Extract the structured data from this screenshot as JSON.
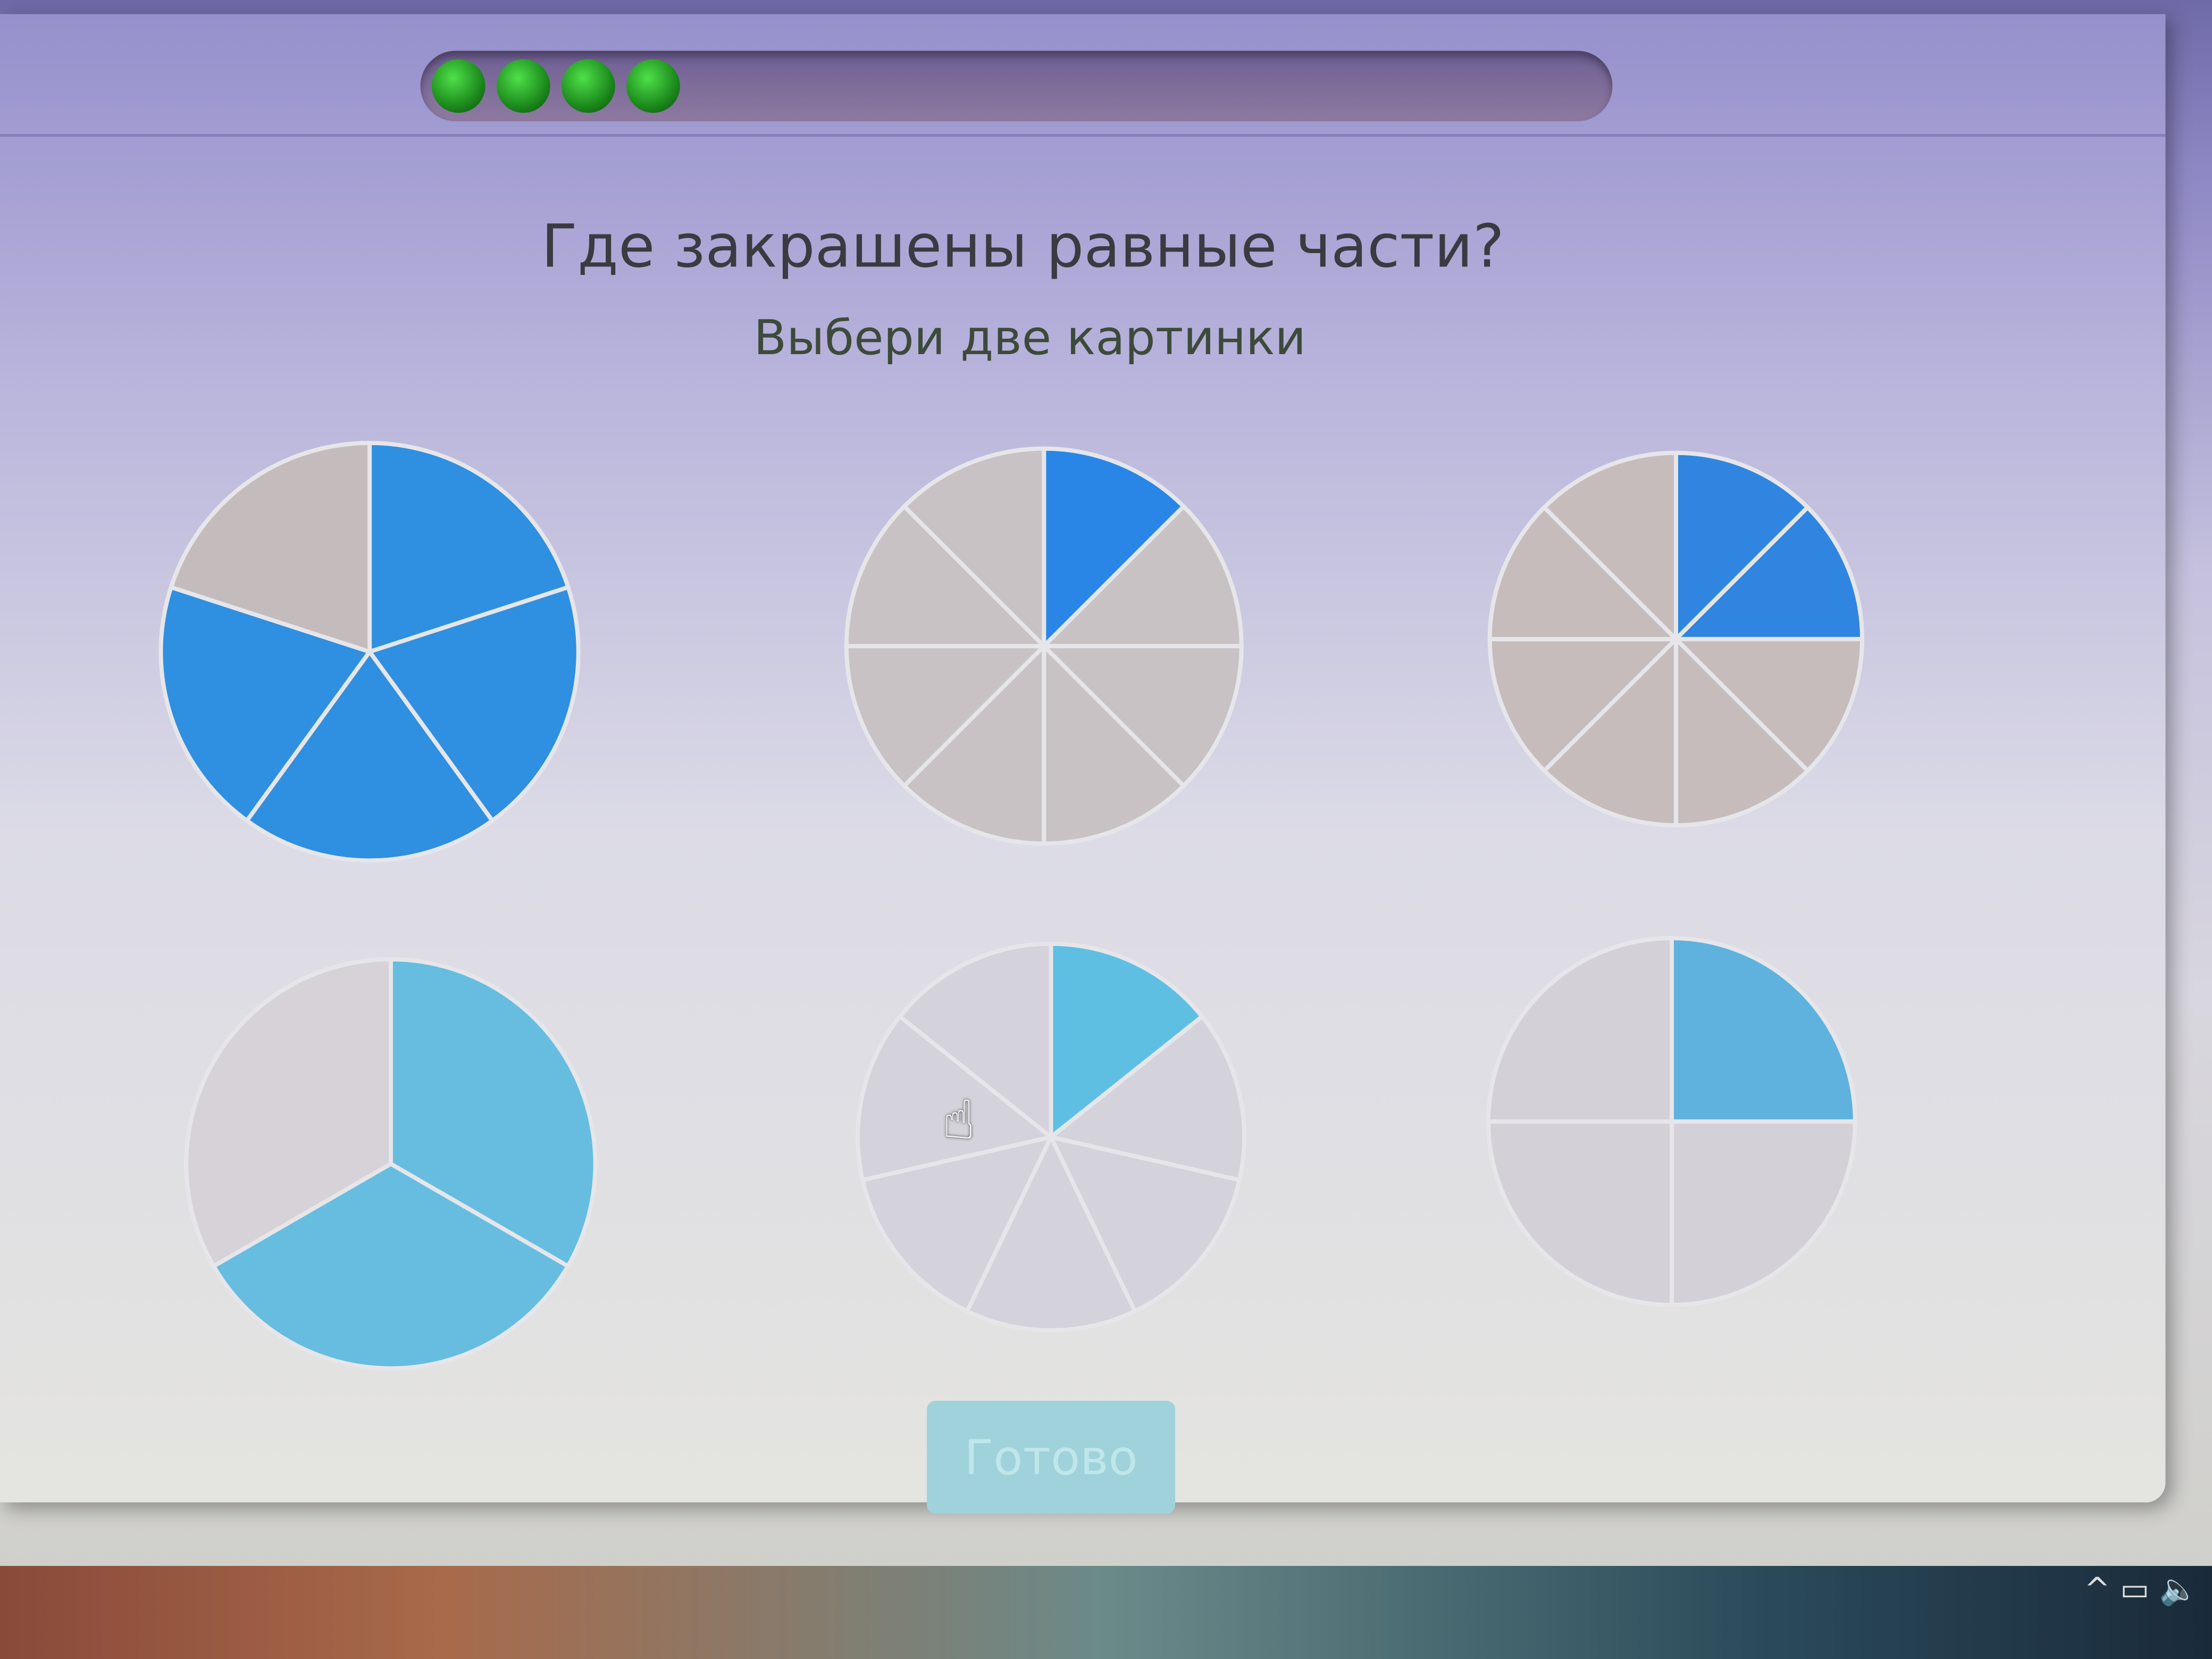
{
  "progress": {
    "completed": 4,
    "color": "#2fb52a"
  },
  "question": {
    "title": "Где закрашены равные части?",
    "subtitle": "Выбери две картинки"
  },
  "pies": [
    {
      "slices": 5,
      "shaded": 4,
      "color": "#2f8fe0",
      "rest": "#c4bcbc"
    },
    {
      "slices": 8,
      "shaded": 1,
      "color": "#2a86e6",
      "rest": "#c8c2c4"
    },
    {
      "slices": 8,
      "shaded": 2,
      "color": "#2f85e0",
      "rest": "#c6bcbc"
    },
    {
      "slices": 3,
      "shaded": 2,
      "color": "#66bde0",
      "rest": "#d6d2d8"
    },
    {
      "slices": 7,
      "shaded": 1,
      "color": "#5fbfe2",
      "rest": "#d4d2da"
    },
    {
      "slices": 4,
      "shaded": 1,
      "color": "#5fb2de",
      "rest": "#d4d0d8"
    }
  ],
  "done_button": {
    "label": "Готово",
    "color": "#9fd2da"
  },
  "cursor": "hand-pointer-icon"
}
